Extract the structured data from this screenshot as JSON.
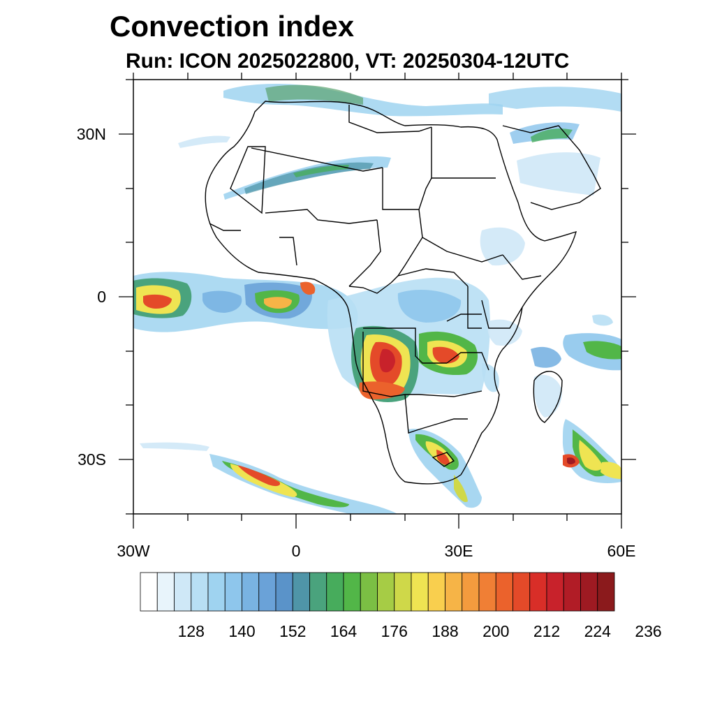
{
  "title": "Convection index",
  "subtitle": "Run: ICON 2025022800,  VT: 20250304-12UTC",
  "map": {
    "region": "Africa",
    "lon_range": [
      -30,
      60
    ],
    "lat_range": [
      -40,
      40
    ],
    "y_tick_labels": [
      "30N",
      "0",
      "30S"
    ],
    "x_tick_labels": [
      "30W",
      "0",
      "30E",
      "60E"
    ]
  },
  "colorbar": {
    "labels": [
      "128",
      "140",
      "152",
      "164",
      "176",
      "188",
      "200",
      "212",
      "224",
      "236"
    ],
    "colors": [
      "#ffffff",
      "#e8f4fb",
      "#cfe8f7",
      "#b8dff4",
      "#9fd3f0",
      "#8ec6ec",
      "#79b3e2",
      "#6aa2d8",
      "#5a93c9",
      "#4f95a8",
      "#4aa37d",
      "#47ac5c",
      "#52b648",
      "#7bbf44",
      "#a6cc45",
      "#cfd849",
      "#efe452",
      "#f9cf4e",
      "#f6b447",
      "#f49b3e",
      "#f07f35",
      "#eb622c",
      "#e44a29",
      "#d92e28",
      "#c8222b",
      "#b11c26",
      "#9e1a22",
      "#8b1a1c"
    ]
  }
}
